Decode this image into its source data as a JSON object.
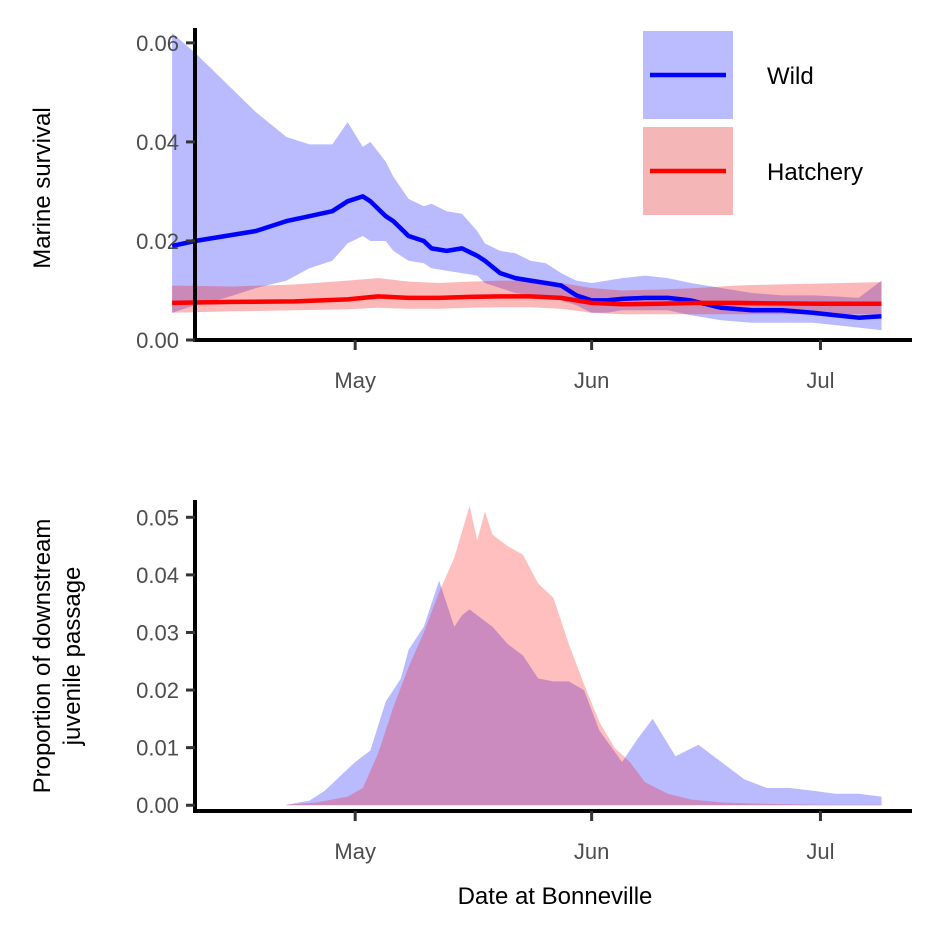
{
  "chart_data": [
    {
      "type": "line",
      "panel": "top",
      "xlabel": "",
      "ylabel": "Marine survival",
      "x_axis": {
        "type": "date",
        "range": [
          "2000-04-10",
          "2000-07-13"
        ],
        "ticks": [
          {
            "date": "2000-05-01",
            "label": "May"
          },
          {
            "date": "2000-06-01",
            "label": "Jun"
          },
          {
            "date": "2000-07-01",
            "label": "Jul"
          }
        ]
      },
      "ylim": [
        0,
        0.063
      ],
      "yticks": [
        0,
        0.02,
        0.04,
        0.06
      ],
      "ytick_labels": [
        "0.00",
        "0.02",
        "0.04",
        "0.06"
      ],
      "grid": false,
      "legend": {
        "position": "top-right",
        "entries": [
          {
            "label": "Wild",
            "color": "#0000ff",
            "fill": "#bbbbff"
          },
          {
            "label": "Hatchery",
            "color": "#ff0000",
            "fill": "#f4b6b6"
          }
        ]
      },
      "series": [
        {
          "name": "Wild",
          "color": "#0000ff",
          "band_color": "#0000ff",
          "band_opacity": 0.27,
          "dates": [
            "2000-04-07",
            "2000-04-10",
            "2000-04-14",
            "2000-04-18",
            "2000-04-22",
            "2000-04-25",
            "2000-04-28",
            "2000-04-30",
            "2000-05-02",
            "2000-05-03",
            "2000-05-05",
            "2000-05-06",
            "2000-05-08",
            "2000-05-10",
            "2000-05-11",
            "2000-05-13",
            "2000-05-15",
            "2000-05-17",
            "2000-05-18",
            "2000-05-20",
            "2000-05-22",
            "2000-05-24",
            "2000-05-26",
            "2000-05-28",
            "2000-05-30",
            "2000-06-01",
            "2000-06-03",
            "2000-06-05",
            "2000-06-08",
            "2000-06-11",
            "2000-06-14",
            "2000-06-18",
            "2000-06-22",
            "2000-06-26",
            "2000-06-30",
            "2000-07-03",
            "2000-07-06",
            "2000-07-09"
          ],
          "values": [
            0.019,
            0.02,
            0.021,
            0.022,
            0.024,
            0.025,
            0.026,
            0.028,
            0.029,
            0.028,
            0.025,
            0.024,
            0.021,
            0.02,
            0.0185,
            0.018,
            0.0185,
            0.017,
            0.016,
            0.0135,
            0.0125,
            0.012,
            0.0115,
            0.011,
            0.009,
            0.008,
            0.008,
            0.0083,
            0.0085,
            0.0085,
            0.008,
            0.0065,
            0.006,
            0.006,
            0.0055,
            0.005,
            0.0045,
            0.0048
          ],
          "lower": [
            0.0055,
            0.007,
            0.0085,
            0.0105,
            0.012,
            0.0145,
            0.016,
            0.0195,
            0.021,
            0.02,
            0.02,
            0.018,
            0.016,
            0.0155,
            0.0145,
            0.014,
            0.0135,
            0.013,
            0.0115,
            0.0105,
            0.0095,
            0.009,
            0.0085,
            0.008,
            0.007,
            0.0055,
            0.0055,
            0.006,
            0.006,
            0.006,
            0.005,
            0.004,
            0.0035,
            0.0035,
            0.0035,
            0.003,
            0.0025,
            0.002
          ],
          "upper": [
            0.062,
            0.058,
            0.052,
            0.046,
            0.041,
            0.0395,
            0.0395,
            0.044,
            0.039,
            0.04,
            0.036,
            0.033,
            0.0285,
            0.027,
            0.0275,
            0.026,
            0.0255,
            0.022,
            0.0195,
            0.018,
            0.0175,
            0.016,
            0.0155,
            0.0135,
            0.012,
            0.0115,
            0.012,
            0.0125,
            0.013,
            0.0125,
            0.0115,
            0.0105,
            0.0095,
            0.009,
            0.009,
            0.0088,
            0.0085,
            0.012
          ]
        },
        {
          "name": "Hatchery",
          "color": "#ff0000",
          "band_color": "#ee2222",
          "band_opacity": 0.32,
          "dates": [
            "2000-04-07",
            "2000-04-15",
            "2000-04-23",
            "2000-04-30",
            "2000-05-04",
            "2000-05-08",
            "2000-05-12",
            "2000-05-16",
            "2000-05-20",
            "2000-05-24",
            "2000-05-28",
            "2000-06-01",
            "2000-06-05",
            "2000-06-10",
            "2000-06-15",
            "2000-06-20",
            "2000-06-25",
            "2000-07-01",
            "2000-07-09"
          ],
          "values": [
            0.0075,
            0.0077,
            0.0078,
            0.0082,
            0.0088,
            0.0085,
            0.0085,
            0.0087,
            0.0088,
            0.0088,
            0.0085,
            0.0075,
            0.0072,
            0.0073,
            0.0075,
            0.0075,
            0.0074,
            0.0073,
            0.0073
          ],
          "lower": [
            0.0055,
            0.0058,
            0.006,
            0.0062,
            0.0065,
            0.0063,
            0.0063,
            0.0065,
            0.0066,
            0.0066,
            0.0063,
            0.0055,
            0.0052,
            0.0052,
            0.0052,
            0.0052,
            0.0052,
            0.0052,
            0.0052
          ],
          "upper": [
            0.011,
            0.0108,
            0.0112,
            0.012,
            0.0125,
            0.0118,
            0.0115,
            0.0118,
            0.012,
            0.012,
            0.0115,
            0.0105,
            0.01,
            0.0102,
            0.0105,
            0.011,
            0.0112,
            0.0114,
            0.0117
          ]
        }
      ]
    },
    {
      "type": "area",
      "panel": "bottom",
      "xlabel": "Date at Bonneville",
      "ylabel": "Proportion of downstream\njuvenile passage",
      "x_axis": {
        "type": "date",
        "range": [
          "2000-04-10",
          "2000-07-13"
        ],
        "ticks": [
          {
            "date": "2000-05-01",
            "label": "May"
          },
          {
            "date": "2000-06-01",
            "label": "Jun"
          },
          {
            "date": "2000-07-01",
            "label": "Jul"
          }
        ]
      },
      "ylim": [
        -0.001,
        0.053
      ],
      "yticks": [
        0,
        0.01,
        0.02,
        0.03,
        0.04,
        0.05
      ],
      "ytick_labels": [
        "0.00",
        "0.01",
        "0.02",
        "0.03",
        "0.04",
        "0.05"
      ],
      "grid": false,
      "series": [
        {
          "name": "Wild",
          "color": "#0000ff",
          "opacity": 0.27,
          "dates": [
            "2000-04-22",
            "2000-04-25",
            "2000-04-27",
            "2000-04-29",
            "2000-05-01",
            "2000-05-03",
            "2000-05-05",
            "2000-05-07",
            "2000-05-08",
            "2000-05-10",
            "2000-05-12",
            "2000-05-14",
            "2000-05-15",
            "2000-05-16",
            "2000-05-17",
            "2000-05-19",
            "2000-05-21",
            "2000-05-23",
            "2000-05-25",
            "2000-05-27",
            "2000-05-29",
            "2000-05-31",
            "2000-06-02",
            "2000-06-05",
            "2000-06-07",
            "2000-06-09",
            "2000-06-12",
            "2000-06-15",
            "2000-06-18",
            "2000-06-21",
            "2000-06-24",
            "2000-06-27",
            "2000-06-30",
            "2000-07-03",
            "2000-07-06",
            "2000-07-09"
          ],
          "values": [
            0.0001,
            0.0008,
            0.0025,
            0.005,
            0.0075,
            0.0095,
            0.018,
            0.022,
            0.027,
            0.031,
            0.039,
            0.031,
            0.033,
            0.034,
            0.033,
            0.031,
            0.028,
            0.026,
            0.022,
            0.0215,
            0.0215,
            0.02,
            0.013,
            0.0075,
            0.0115,
            0.015,
            0.0085,
            0.0105,
            0.0075,
            0.0045,
            0.003,
            0.003,
            0.0025,
            0.002,
            0.002,
            0.0015
          ]
        },
        {
          "name": "Hatchery",
          "color": "#ff0000",
          "opacity": 0.25,
          "dates": [
            "2000-04-22",
            "2000-04-26",
            "2000-04-30",
            "2000-05-02",
            "2000-05-04",
            "2000-05-06",
            "2000-05-08",
            "2000-05-10",
            "2000-05-12",
            "2000-05-14",
            "2000-05-16",
            "2000-05-17",
            "2000-05-18",
            "2000-05-19",
            "2000-05-21",
            "2000-05-23",
            "2000-05-25",
            "2000-05-27",
            "2000-05-29",
            "2000-05-31",
            "2000-06-02",
            "2000-06-04",
            "2000-06-06",
            "2000-06-08",
            "2000-06-11",
            "2000-06-14",
            "2000-06-18",
            "2000-06-22",
            "2000-06-26",
            "2000-07-01",
            "2000-07-09"
          ],
          "values": [
            0.0001,
            0.0005,
            0.0015,
            0.003,
            0.009,
            0.017,
            0.024,
            0.03,
            0.037,
            0.043,
            0.052,
            0.046,
            0.051,
            0.047,
            0.045,
            0.0435,
            0.0385,
            0.036,
            0.028,
            0.021,
            0.0145,
            0.01,
            0.0075,
            0.004,
            0.002,
            0.001,
            0.0005,
            0.0003,
            0.0002,
            0.0001,
            0.0001
          ]
        }
      ]
    }
  ]
}
